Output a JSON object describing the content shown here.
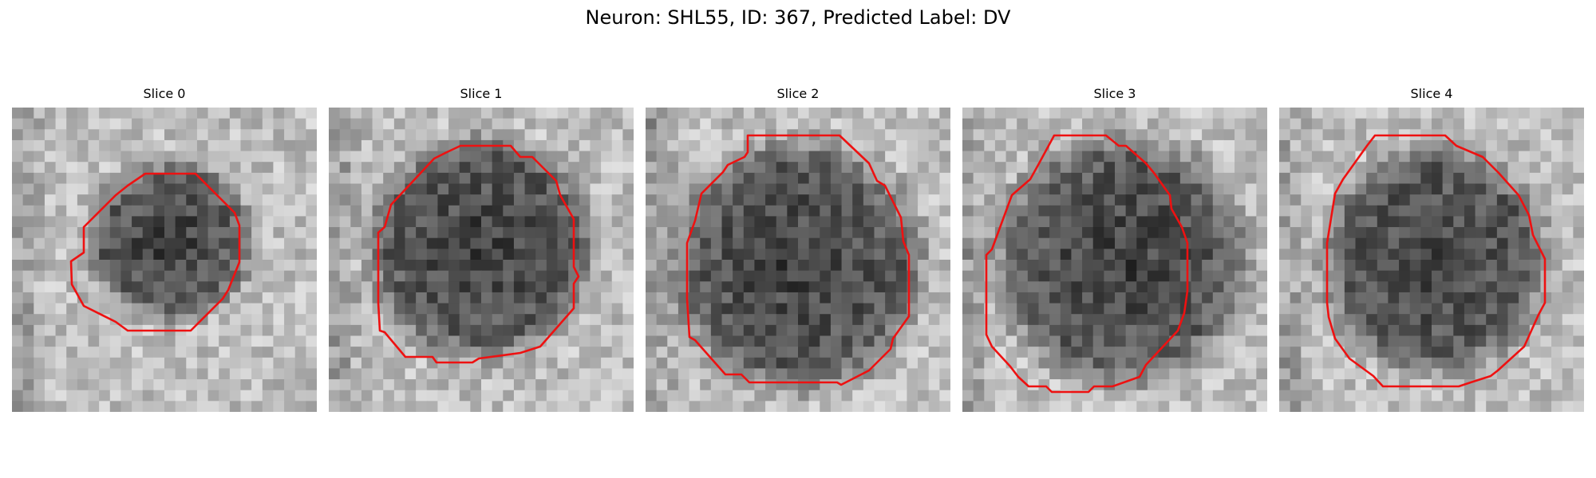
{
  "figure": {
    "title": "Neuron: SHL55, ID: 367, Predicted Label: DV"
  },
  "colors": {
    "contour": "#ee1111",
    "background": "#ffffff"
  },
  "panels": [
    {
      "title": "Slice 0"
    },
    {
      "title": "Slice 1"
    },
    {
      "title": "Slice 2"
    },
    {
      "title": "Slice 3"
    },
    {
      "title": "Slice 4"
    }
  ]
}
